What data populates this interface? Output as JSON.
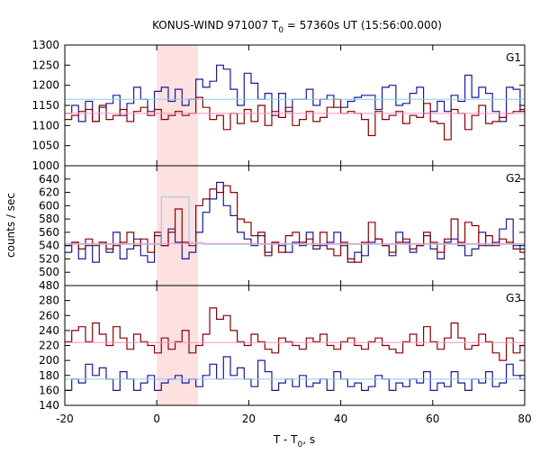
{
  "chart_data": {
    "type": "line",
    "title": "KONUS-WIND 971007 T",
    "title_sub": "0",
    "title_rest": " = 57360s UT (15:56:00.000)",
    "xlabel": "T - T",
    "xlabel_sub": "0",
    "xlabel_rest": ", s",
    "ylabel": "counts / sec",
    "xlim": [
      -20,
      80
    ],
    "xticks": [
      -20,
      0,
      20,
      40,
      60,
      80
    ],
    "highlight_interval": [
      0,
      9
    ],
    "colors": {
      "highlight": "#fde0e0",
      "dark_red": "#8b0000",
      "dark_blue": "#1a1a99",
      "light_blue": "#87ceeb",
      "pink": "#ff8fc8",
      "axis": "#000000"
    },
    "panels": [
      {
        "label": "G1",
        "ylim": [
          1000,
          1300
        ],
        "yticks": [
          1000,
          1050,
          1100,
          1150,
          1200,
          1250,
          1300
        ],
        "series": [
          {
            "color": "dark_blue",
            "step": 1.5,
            "start": -20,
            "values": [
              1130,
              1150,
              1110,
              1160,
              1110,
              1145,
              1155,
              1175,
              1125,
              1155,
              1195,
              1165,
              1135,
              1185,
              1195,
              1160,
              1190,
              1150,
              1165,
              1215,
              1195,
              1210,
              1250,
              1240,
              1190,
              1150,
              1230,
              1205,
              1165,
              1180,
              1125,
              1180,
              1135,
              1165,
              1165,
              1190,
              1150,
              1165,
              1175,
              1145,
              1145,
              1160,
              1170,
              1175,
              1175,
              1140,
              1195,
              1200,
              1150,
              1155,
              1180,
              1195,
              1130,
              1135,
              1160,
              1135,
              1175,
              1160,
              1225,
              1170,
              1195,
              1180,
              1135,
              1110,
              1195,
              1190,
              1135
            ]
          },
          {
            "color": "dark_red",
            "step": 1.5,
            "start": -20,
            "values": [
              1115,
              1125,
              1135,
              1140,
              1110,
              1150,
              1115,
              1125,
              1140,
              1110,
              1135,
              1145,
              1125,
              1140,
              1115,
              1125,
              1135,
              1125,
              1130,
              1170,
              1145,
              1115,
              1125,
              1090,
              1130,
              1105,
              1140,
              1110,
              1150,
              1100,
              1135,
              1120,
              1145,
              1100,
              1115,
              1135,
              1110,
              1120,
              1145,
              1165,
              1130,
              1135,
              1130,
              1115,
              1075,
              1135,
              1115,
              1125,
              1135,
              1105,
              1125,
              1120,
              1155,
              1110,
              1105,
              1065,
              1140,
              1130,
              1090,
              1125,
              1150,
              1105,
              1110,
              1120,
              1130,
              1135,
              1140
            ]
          },
          {
            "color": "light_blue",
            "step": 100,
            "start": -20,
            "values": [
              1165
            ]
          },
          {
            "color": "pink",
            "step": 100,
            "start": -20,
            "values": [
              1130
            ]
          }
        ]
      },
      {
        "label": "G2",
        "ylim": [
          480,
          660
        ],
        "yticks": [
          480,
          500,
          520,
          540,
          560,
          580,
          600,
          620,
          640
        ],
        "series": [
          {
            "color": "dark_blue",
            "step": 1.5,
            "start": -20,
            "values": [
              530,
              545,
              520,
              540,
              515,
              545,
              530,
              560,
              520,
              535,
              550,
              525,
              515,
              555,
              540,
              565,
              545,
              520,
              530,
              560,
              590,
              610,
              635,
              600,
              585,
              560,
              550,
              540,
              555,
              530,
              545,
              540,
              530,
              545,
              540,
              560,
              535,
              540,
              545,
              560,
              540,
              515,
              530,
              525,
              545,
              550,
              540,
              525,
              560,
              545,
              530,
              540,
              555,
              535,
              520,
              545,
              550,
              540,
              525,
              535,
              560,
              540,
              545,
              565,
              580,
              540,
              535
            ]
          },
          {
            "color": "dark_red",
            "step": 1.5,
            "start": -20,
            "values": [
              540,
              545,
              535,
              550,
              540,
              545,
              535,
              540,
              545,
              560,
              540,
              550,
              530,
              560,
              540,
              560,
              595,
              545,
              540,
              600,
              610,
              625,
              620,
              630,
              620,
              580,
              575,
              555,
              560,
              525,
              545,
              530,
              555,
              560,
              545,
              550,
              540,
              560,
              535,
              525,
              545,
              520,
              515,
              545,
              575,
              550,
              540,
              530,
              545,
              550,
              535,
              540,
              560,
              545,
              530,
              550,
              580,
              545,
              575,
              570,
              540,
              555,
              540,
              550,
              545,
              535,
              530
            ]
          },
          {
            "color": "light_blue",
            "step": 3,
            "start": -20,
            "values": [
              542,
              542,
              542,
              542,
              542,
              542,
              542,
              613,
              613,
              545,
              542,
              542,
              542,
              542,
              542,
              542,
              542,
              542,
              542,
              542,
              542,
              542,
              542,
              542,
              542,
              542,
              542,
              542,
              542,
              542,
              542,
              542,
              542,
              542
            ]
          },
          {
            "color": "pink",
            "step": 100,
            "start": -20,
            "values": [
              543
            ]
          }
        ]
      },
      {
        "label": "G3",
        "ylim": [
          140,
          300
        ],
        "yticks": [
          140,
          160,
          180,
          200,
          220,
          240,
          260,
          280
        ],
        "series": [
          {
            "color": "dark_blue",
            "step": 1.5,
            "start": -20,
            "values": [
              160,
              175,
              170,
              195,
              180,
              190,
              175,
              160,
              185,
              175,
              160,
              170,
              180,
              160,
              170,
              175,
              180,
              170,
              175,
              165,
              180,
              195,
              175,
              205,
              180,
              190,
              175,
              165,
              200,
              185,
              160,
              170,
              175,
              165,
              180,
              165,
              170,
              175,
              160,
              185,
              175,
              165,
              170,
              160,
              165,
              180,
              175,
              160,
              170,
              165,
              175,
              170,
              185,
              160,
              170,
              165,
              185,
              170,
              160,
              175,
              170,
              185,
              165,
              170,
              195,
              180,
              175
            ]
          },
          {
            "color": "dark_red",
            "step": 1.5,
            "start": -20,
            "values": [
              225,
              240,
              245,
              225,
              250,
              235,
              220,
              245,
              230,
              215,
              235,
              225,
              220,
              210,
              230,
              215,
              225,
              240,
              210,
              220,
              235,
              270,
              255,
              260,
              240,
              225,
              220,
              235,
              225,
              215,
              210,
              230,
              225,
              220,
              215,
              230,
              225,
              235,
              220,
              215,
              225,
              230,
              220,
              215,
              225,
              230,
              220,
              215,
              210,
              225,
              235,
              220,
              245,
              225,
              215,
              230,
              250,
              230,
              215,
              220,
              235,
              225,
              210,
              200,
              230,
              210,
              220
            ]
          },
          {
            "color": "light_blue",
            "step": 100,
            "start": -20,
            "values": [
              175
            ]
          },
          {
            "color": "pink",
            "step": 100,
            "start": -20,
            "values": [
              224
            ]
          }
        ]
      }
    ]
  }
}
